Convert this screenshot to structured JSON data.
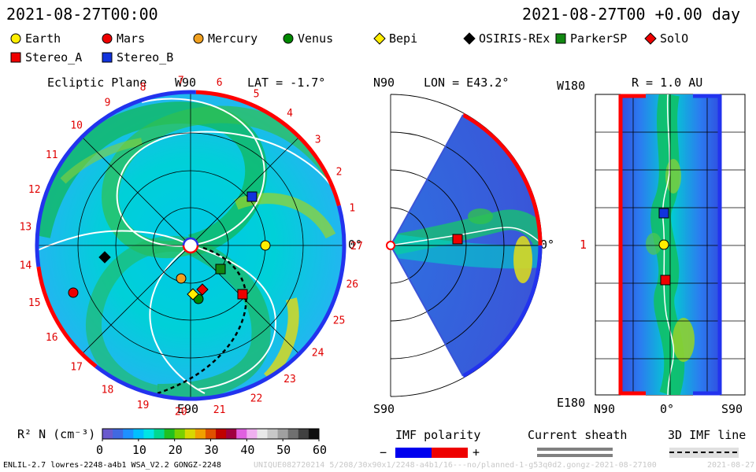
{
  "header": {
    "left_time": "2021-08-27T00:00",
    "right_time": "2021-08-27T00 +0.00 day"
  },
  "legend": [
    {
      "name": "Earth",
      "shape": "circle",
      "fill": "#ffee00"
    },
    {
      "name": "Mars",
      "shape": "circle",
      "fill": "#ee0000"
    },
    {
      "name": "Mercury",
      "shape": "circle",
      "fill": "#f0a020"
    },
    {
      "name": "Venus",
      "shape": "circle",
      "fill": "#008800"
    },
    {
      "name": "Bepi",
      "shape": "diamond",
      "fill": "#ffee00"
    },
    {
      "name": "OSIRIS-REx",
      "shape": "diamond",
      "fill": "#000000"
    },
    {
      "name": "ParkerSP",
      "shape": "square",
      "fill": "#118811"
    },
    {
      "name": "SolO",
      "shape": "diamond",
      "fill": "#ee0000"
    },
    {
      "name": "Stereo_A",
      "shape": "square",
      "fill": "#ee0000"
    },
    {
      "name": "Stereo_B",
      "shape": "square",
      "fill": "#1133dd"
    }
  ],
  "panel1": {
    "title": "Ecliptic Plane",
    "w_label": "W90",
    "lat_label": "LAT = -1.7°",
    "e_label": "E90",
    "zero_label": "0°",
    "carrington_ticks": [
      "1",
      "2",
      "3",
      "4",
      "5",
      "6",
      "7",
      "8",
      "9",
      "10",
      "11",
      "12",
      "13",
      "14",
      "15",
      "16",
      "17",
      "18",
      "19",
      "20",
      "21",
      "22",
      "23",
      "24",
      "25",
      "26",
      "27"
    ]
  },
  "panel2": {
    "n_label": "N90",
    "lon_label": "LON = E43.2°",
    "s_label": "S90",
    "zero_label": "0°"
  },
  "panel3": {
    "w_label": "W180",
    "r_label": "R = 1.0 AU",
    "e_label": "E180",
    "one_label": "1",
    "x_left": "N90",
    "x_mid": "0°",
    "x_right": "S90"
  },
  "colorbar": {
    "label": "R² N (cm⁻³)",
    "ticks": [
      "0",
      "10",
      "20",
      "30",
      "40",
      "50",
      "60"
    ],
    "colors": [
      "#6a5acd",
      "#4169e1",
      "#1e90ff",
      "#00bfff",
      "#00e5e5",
      "#00d890",
      "#20c020",
      "#7ad000",
      "#d8d800",
      "#f0a000",
      "#e05000",
      "#c00000",
      "#a00040",
      "#e060e0",
      "#f0b0f0",
      "#e8e8e8",
      "#c8c8c8",
      "#a0a0a0",
      "#707070",
      "#404040",
      "#101010"
    ]
  },
  "imf": {
    "title": "IMF polarity",
    "minus": "−",
    "plus": "+",
    "sheath_title": "Current sheath",
    "line_title": "3D IMF line"
  },
  "footer": {
    "left": "ENLIL-2.7 lowres-2248-a4b1 WSA_V2.2 GONGZ-2248",
    "right": "UNIQUE082720214 5/208/30x90x1/2248-a4b1/16---no/planned-1-g53q0d2.gongz-2021-08-27100",
    "right2": "2021-08-27"
  },
  "chart_data": [
    {
      "type": "polar-heatmap",
      "title": "Ecliptic Plane",
      "lat_deg": -1.7,
      "objects": [
        "Earth",
        "Mars",
        "Mercury",
        "Venus",
        "Bepi",
        "OSIRIS-REx",
        "ParkerSP",
        "SolO",
        "Stereo_A",
        "Stereo_B"
      ]
    },
    {
      "type": "meridional-heatmap",
      "lon": "E43.2",
      "objects": [
        "Stereo_A"
      ]
    },
    {
      "type": "heatmap",
      "r_au": 1.0,
      "ylabel_top": "W180",
      "ylabel_bottom": "E180",
      "objects": [
        "Stereo_B",
        "Earth",
        "Stereo_A"
      ]
    }
  ]
}
